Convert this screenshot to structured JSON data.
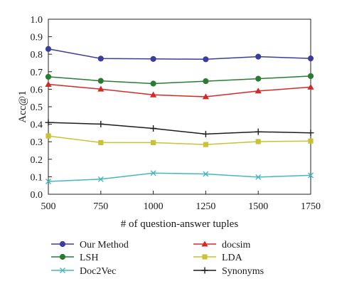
{
  "chart_data": {
    "type": "line",
    "xlabel": "# of question-answer tuples",
    "ylabel": "Acc@1",
    "x": [
      500,
      750,
      1000,
      1250,
      1500,
      1750
    ],
    "xticks": [
      "500",
      "750",
      "1000",
      "1250",
      "1500",
      "1750"
    ],
    "yticks": [
      "0.0",
      "0.1",
      "0.2",
      "0.3",
      "0.4",
      "0.5",
      "0.6",
      "0.7",
      "0.8",
      "0.9",
      "1.0"
    ],
    "xlim": [
      500,
      1750
    ],
    "ylim": [
      0,
      1
    ],
    "grid": false,
    "legend_position": "bottom",
    "series": [
      {
        "name": "Our Method",
        "color": "#3b3d9b",
        "marker": "circle",
        "values": [
          0.83,
          0.775,
          0.773,
          0.771,
          0.786,
          0.776
        ]
      },
      {
        "name": "docsim",
        "color": "#d42a27",
        "marker": "triangle",
        "values": [
          0.628,
          0.601,
          0.568,
          0.557,
          0.59,
          0.612
        ]
      },
      {
        "name": "LSH",
        "color": "#2b7b33",
        "marker": "circle",
        "values": [
          0.671,
          0.648,
          0.632,
          0.646,
          0.66,
          0.675
        ]
      },
      {
        "name": "LDA",
        "color": "#c9c235",
        "marker": "square",
        "values": [
          0.333,
          0.295,
          0.295,
          0.284,
          0.301,
          0.304
        ]
      },
      {
        "name": "Doc2Vec",
        "color": "#46b6c2",
        "marker": "x",
        "values": [
          0.073,
          0.086,
          0.121,
          0.116,
          0.098,
          0.108
        ]
      },
      {
        "name": "Synonyms",
        "color": "#1c1c1c",
        "marker": "plus",
        "values": [
          0.41,
          0.401,
          0.376,
          0.344,
          0.357,
          0.351
        ]
      }
    ]
  }
}
